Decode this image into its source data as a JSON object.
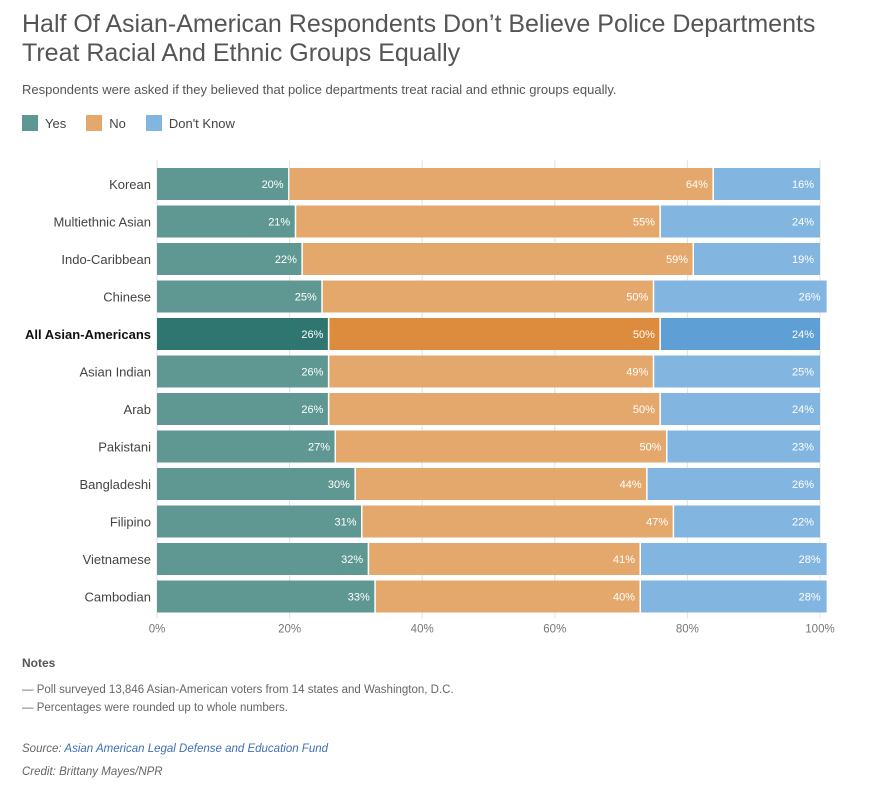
{
  "title": "Half Of Asian-American Respondents Don’t Believe Police Departments Treat Racial And Ethnic Groups Equally",
  "subtitle": "Respondents were asked if they believed that police departments treat racial and ethnic groups equally.",
  "colors": {
    "yes": "#5f9893",
    "no": "#e5a86c",
    "dont_know": "#82b6e0",
    "yes_highlight": "#2f7671",
    "no_highlight": "#dd8c3d",
    "dont_know_highlight": "#5e9fd6"
  },
  "legend": [
    {
      "label": "Yes",
      "key": "yes"
    },
    {
      "label": "No",
      "key": "no"
    },
    {
      "label": "Don't Know",
      "key": "dont_know"
    }
  ],
  "chart_data": {
    "type": "bar",
    "orientation": "horizontal",
    "stacked": true,
    "title": "Half Of Asian-American Respondents Don’t Believe Police Departments Treat Racial And Ethnic Groups Equally",
    "xlabel": "",
    "ylabel": "",
    "xlim": [
      0,
      100
    ],
    "xticks": [
      "0%",
      "20%",
      "40%",
      "60%",
      "80%",
      "100%"
    ],
    "grid": true,
    "highlight": "All Asian-Americans",
    "categories": [
      "Korean",
      "Multiethnic Asian",
      "Indo-Caribbean",
      "Chinese",
      "All Asian-Americans",
      "Asian Indian",
      "Arab",
      "Pakistani",
      "Bangladeshi",
      "Filipino",
      "Vietnamese",
      "Cambodian"
    ],
    "series": [
      {
        "name": "Yes",
        "values": [
          20,
          21,
          22,
          25,
          26,
          26,
          26,
          27,
          30,
          31,
          32,
          33
        ]
      },
      {
        "name": "No",
        "values": [
          64,
          55,
          59,
          50,
          50,
          49,
          50,
          50,
          44,
          47,
          41,
          40
        ]
      },
      {
        "name": "Don't Know",
        "values": [
          16,
          24,
          19,
          26,
          24,
          25,
          24,
          23,
          26,
          22,
          28,
          28
        ]
      }
    ]
  },
  "notes": {
    "heading": "Notes",
    "lines": [
      "— Poll surveyed 13,846 Asian-American voters from 14 states and Washington, D.C.",
      "— Percentages were rounded up to whole numbers."
    ]
  },
  "source": {
    "label": "Source:",
    "link_text": "Asian American Legal Defense and Education Fund"
  },
  "credit": "Credit: Brittany Mayes/NPR"
}
